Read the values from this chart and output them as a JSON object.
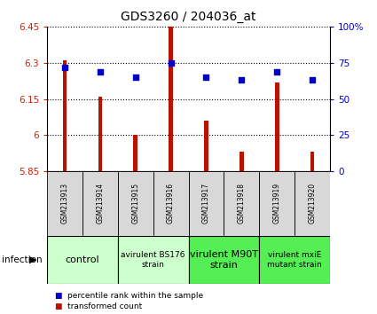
{
  "title": "GDS3260 / 204036_at",
  "samples": [
    "GSM213913",
    "GSM213914",
    "GSM213915",
    "GSM213916",
    "GSM213917",
    "GSM213918",
    "GSM213919",
    "GSM213920"
  ],
  "bar_values": [
    6.31,
    6.16,
    6.0,
    6.45,
    6.06,
    5.93,
    6.22,
    5.93
  ],
  "dot_values": [
    72,
    69,
    65,
    75,
    65,
    63,
    69,
    63
  ],
  "ylim_left": [
    5.85,
    6.45
  ],
  "yticks_left": [
    5.85,
    6.0,
    6.15,
    6.3,
    6.45
  ],
  "ytick_labels_left": [
    "5.85",
    "6",
    "6.15",
    "6.3",
    "6.45"
  ],
  "ylim_right": [
    0,
    100
  ],
  "yticks_right": [
    0,
    25,
    50,
    75,
    100
  ],
  "ytick_labels_right": [
    "0",
    "25",
    "50",
    "75",
    "100%"
  ],
  "bar_color": "#bb1100",
  "dot_color": "#0000cc",
  "groups": [
    {
      "label": "control",
      "start": 0,
      "end": 2,
      "color": "#ccffcc",
      "fontsize": 8,
      "bold": false
    },
    {
      "label": "avirulent BS176\nstrain",
      "start": 2,
      "end": 4,
      "color": "#ccffcc",
      "fontsize": 6.5,
      "bold": false
    },
    {
      "label": "virulent M90T\nstrain",
      "start": 4,
      "end": 6,
      "color": "#55ee55",
      "fontsize": 8,
      "bold": false
    },
    {
      "label": "virulent mxiE\nmutant strain",
      "start": 6,
      "end": 8,
      "color": "#55ee55",
      "fontsize": 6.5,
      "bold": false
    }
  ],
  "infection_label": "infection",
  "legend_items": [
    {
      "color": "#bb1100",
      "label": "transformed count"
    },
    {
      "color": "#0000cc",
      "label": "percentile rank within the sample"
    }
  ],
  "tick_color_left": "#cc2200",
  "tick_color_right": "#0000cc",
  "bar_width": 0.12
}
